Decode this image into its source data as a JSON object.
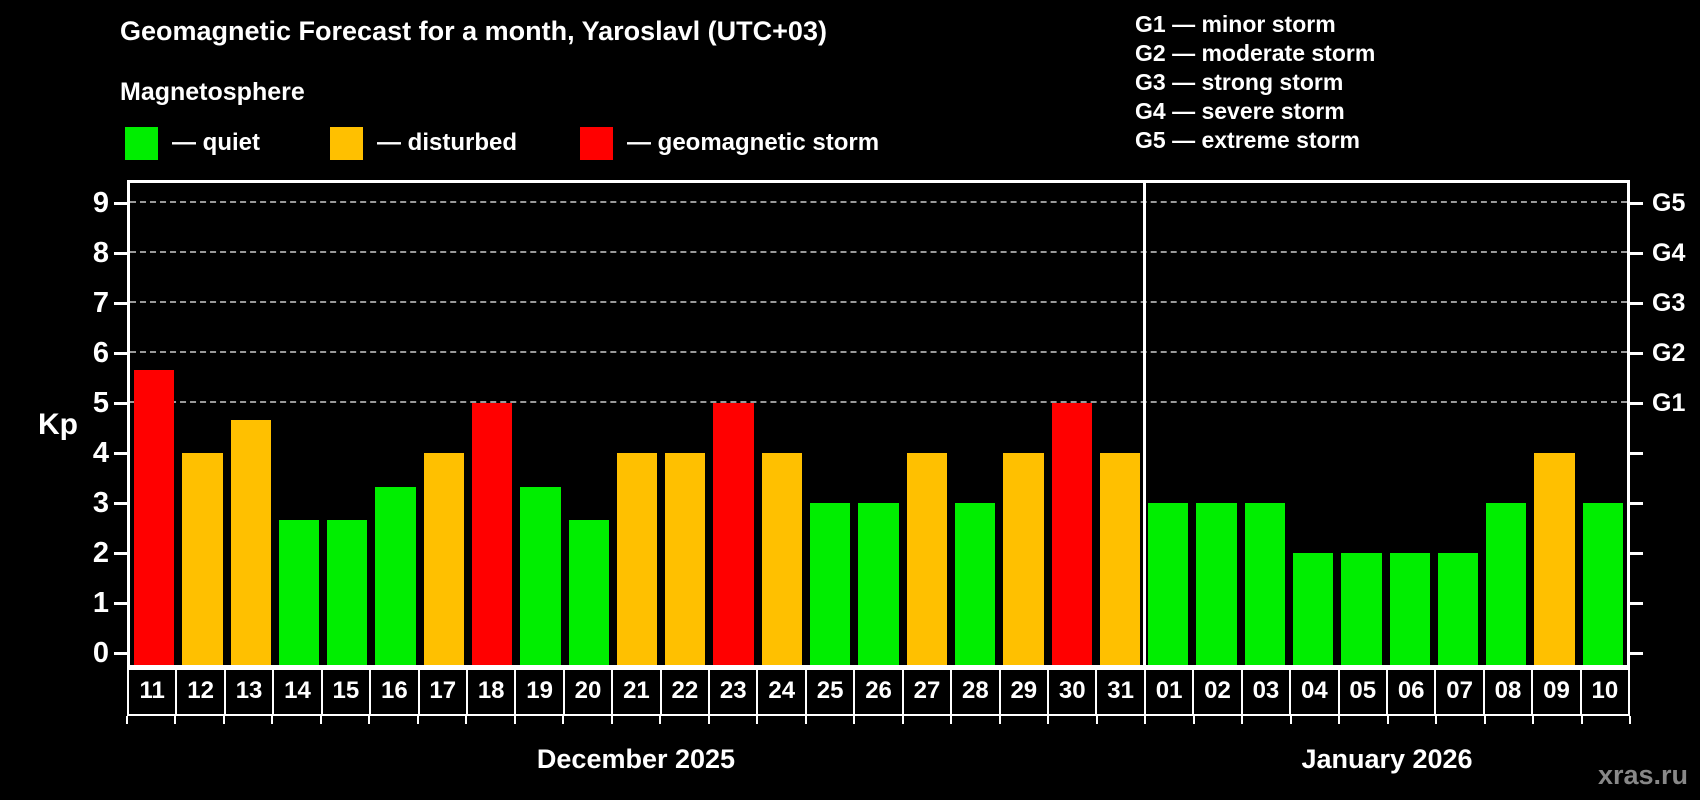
{
  "title": "Geomagnetic Forecast for a month, Yaroslavl (UTC+03)",
  "subtitle": "Magnetosphere",
  "legend": [
    {
      "key": "quiet",
      "label": "— quiet",
      "x": 125
    },
    {
      "key": "disturbed",
      "label": "— disturbed",
      "x": 330
    },
    {
      "key": "storm",
      "label": "— geomagnetic storm",
      "x": 580
    }
  ],
  "storm_scale": [
    "G1 — minor storm",
    "G2 — moderate storm",
    "G3 — strong storm",
    "G4 — severe storm",
    "G5 — extreme storm"
  ],
  "colors": {
    "quiet": "#00ee00",
    "disturbed": "#ffc000",
    "storm": "#ff0000",
    "axis": "#ffffff",
    "grid": "#999999",
    "background": "#000000",
    "watermark": "#888888"
  },
  "watermark": "xras.ru",
  "chart_data": {
    "type": "bar",
    "ylabel": "Kp",
    "ylim": [
      0,
      9.4
    ],
    "yticks": [
      0,
      1,
      2,
      3,
      4,
      5,
      6,
      7,
      8,
      9
    ],
    "gridlines_kp": [
      5,
      6,
      7,
      8,
      9
    ],
    "right_axis_labels": [
      {
        "kp": 5,
        "label": "G1"
      },
      {
        "kp": 6,
        "label": "G2"
      },
      {
        "kp": 7,
        "label": "G3"
      },
      {
        "kp": 8,
        "label": "G4"
      },
      {
        "kp": 9,
        "label": "G5"
      }
    ],
    "months": [
      {
        "label": "December 2025",
        "days": 21
      },
      {
        "label": "January 2026",
        "days": 10
      }
    ],
    "categories": [
      "11",
      "12",
      "13",
      "14",
      "15",
      "16",
      "17",
      "18",
      "19",
      "20",
      "21",
      "22",
      "23",
      "24",
      "25",
      "26",
      "27",
      "28",
      "29",
      "30",
      "31",
      "01",
      "02",
      "03",
      "04",
      "05",
      "06",
      "07",
      "08",
      "09",
      "10"
    ],
    "values": [
      5.67,
      4,
      4.67,
      2.67,
      2.67,
      3.33,
      4,
      5,
      3.33,
      2.67,
      4,
      4,
      5,
      4,
      3,
      3,
      4,
      3,
      4,
      5,
      4,
      3,
      3,
      3,
      2,
      2,
      2,
      2,
      3,
      4,
      3
    ],
    "statuses": [
      "storm",
      "disturbed",
      "disturbed",
      "quiet",
      "quiet",
      "quiet",
      "disturbed",
      "storm",
      "quiet",
      "quiet",
      "disturbed",
      "disturbed",
      "storm",
      "disturbed",
      "quiet",
      "quiet",
      "disturbed",
      "quiet",
      "disturbed",
      "storm",
      "disturbed",
      "quiet",
      "quiet",
      "quiet",
      "quiet",
      "quiet",
      "quiet",
      "quiet",
      "quiet",
      "disturbed",
      "quiet"
    ]
  }
}
